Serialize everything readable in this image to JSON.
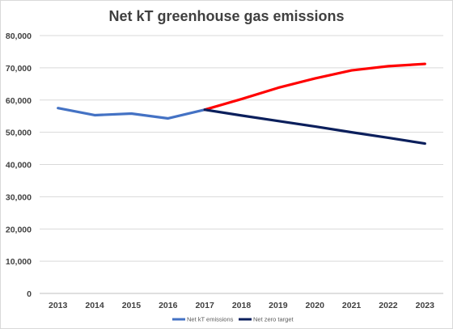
{
  "chart_data": {
    "type": "line",
    "title": "Net kT greenhouse gas emissions",
    "xlabel": "",
    "ylabel": "",
    "categories": [
      "2013",
      "2014",
      "2015",
      "2016",
      "2017",
      "2018",
      "2019",
      "2020",
      "2021",
      "2022",
      "2023"
    ],
    "ylim": [
      0,
      80000
    ],
    "yticks": [
      0,
      10000,
      20000,
      30000,
      40000,
      50000,
      60000,
      70000,
      80000
    ],
    "ytick_labels": [
      "0",
      "10,000",
      "20,000",
      "30,000",
      "40,000",
      "50,000",
      "60,000",
      "70,000",
      "80,000"
    ],
    "grid": "horizontal",
    "legend_position": "bottom",
    "series": [
      {
        "name": "Net kT emissions",
        "color": "#4472C4",
        "values": [
          57500,
          55300,
          55800,
          54300,
          57000,
          null,
          null,
          null,
          null,
          null,
          null
        ]
      },
      {
        "name": "",
        "color": "#FF0000",
        "values": [
          null,
          null,
          null,
          null,
          57000,
          60300,
          63800,
          66700,
          69200,
          70500,
          71200
        ]
      },
      {
        "name": "Net zero target",
        "color": "#0B1F5C",
        "values": [
          null,
          null,
          null,
          null,
          57000,
          55200,
          53500,
          51800,
          50000,
          48300,
          46500
        ]
      }
    ],
    "legend": [
      {
        "label": "Net kT emissions",
        "color": "#4472C4"
      },
      {
        "label": "Net zero target",
        "color": "#0B1F5C"
      }
    ]
  }
}
